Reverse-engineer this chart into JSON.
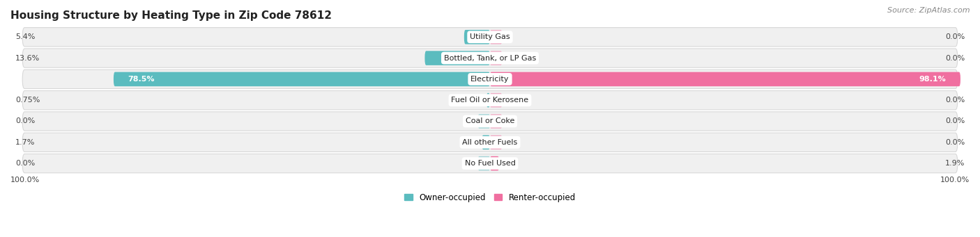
{
  "title": "Housing Structure by Heating Type in Zip Code 78612",
  "source": "Source: ZipAtlas.com",
  "categories": [
    "Utility Gas",
    "Bottled, Tank, or LP Gas",
    "Electricity",
    "Fuel Oil or Kerosene",
    "Coal or Coke",
    "All other Fuels",
    "No Fuel Used"
  ],
  "owner_values": [
    5.4,
    13.6,
    78.5,
    0.75,
    0.0,
    1.7,
    0.0
  ],
  "renter_values": [
    0.0,
    0.0,
    98.1,
    0.0,
    0.0,
    0.0,
    1.9
  ],
  "owner_color": "#5bbcbf",
  "renter_color": "#f06fa0",
  "row_bg_color": "#f0f0f0",
  "row_border_color": "#d8d8d8",
  "axis_label_left": "100.0%",
  "axis_label_right": "100.0%",
  "max_val": 100.0,
  "title_fontsize": 11,
  "source_fontsize": 8,
  "bar_label_fontsize": 8,
  "cat_label_fontsize": 8,
  "legend_fontsize": 8.5,
  "figsize": [
    14.06,
    3.41
  ],
  "dpi": 100
}
